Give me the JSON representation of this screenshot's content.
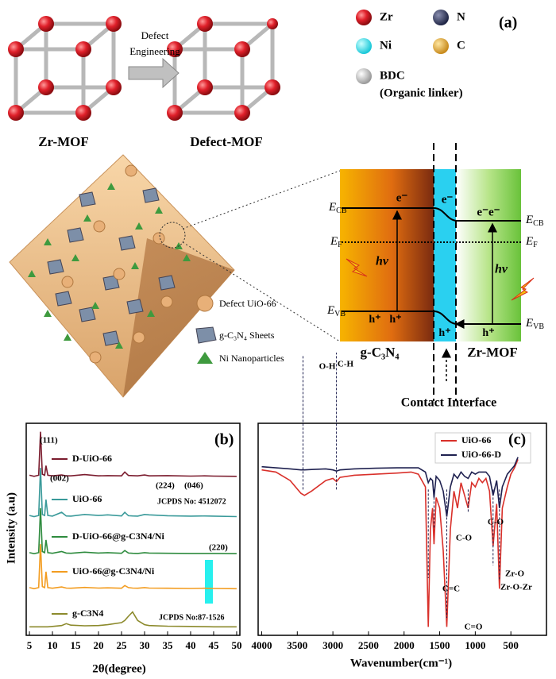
{
  "panel_a": {
    "panel_label": "(a)",
    "atom_legend": [
      "Zr",
      "N",
      "Ni",
      "C",
      "BDC"
    ],
    "linker_note": "(Organic linker)",
    "arrow_label": [
      "Defect",
      "Engineering"
    ],
    "mof_labels": [
      "Zr-MOF",
      "Defect-MOF"
    ],
    "particle_legend": [
      "Defect UiO-66",
      "g-C₃N₄ Sheets",
      "Ni Nanoparticles"
    ],
    "energy_labels": [
      [
        "E",
        "CB"
      ],
      [
        "E",
        "F"
      ],
      [
        "E",
        "VB"
      ],
      [
        "E",
        "CB"
      ],
      [
        "E",
        "F"
      ],
      [
        "E",
        "VB"
      ]
    ],
    "electrons": [
      "e⁻",
      "e⁻",
      "e⁻e⁻"
    ],
    "holes": [
      "h⁺",
      "h⁺",
      "h⁺",
      "h⁺"
    ],
    "photons": [
      "hν",
      "hν"
    ],
    "phases": [
      "g-C₃N₄",
      "Zr-MOF"
    ],
    "interface_label": "Contact Interface"
  },
  "chart_data": [
    {
      "type": "line",
      "panel_label": "(b)",
      "x_label": "2θ(degree)",
      "y_label": "Intensity (a.u)",
      "xlim": [
        4.3,
        50.7
      ],
      "xticks": [
        5,
        10,
        15,
        20,
        25,
        30,
        35,
        40,
        45,
        50
      ],
      "ylim": [
        0,
        100
      ],
      "x": [
        5,
        6,
        7,
        7.4,
        7.8,
        8.3,
        8.6,
        9,
        10,
        12,
        13,
        14,
        17,
        20,
        22,
        25,
        25.7,
        26.5,
        27.4,
        28.5,
        30,
        31,
        35,
        40,
        43,
        45,
        50
      ],
      "series": [
        {
          "name": "D-UiO-66",
          "color": "#7b1c2e",
          "values": [
            75.5,
            75,
            75.5,
            96,
            76,
            75.5,
            80,
            75.5,
            75.2,
            75.6,
            75.2,
            75.2,
            75.8,
            75.2,
            75.3,
            75.2,
            77,
            75.4,
            75.3,
            75.2,
            75.6,
            75.2,
            75.3,
            75.1,
            75.2,
            75.1,
            75
          ]
        },
        {
          "name": "UiO-66",
          "color": "#3a9a9a",
          "values": [
            56.5,
            56,
            56.5,
            79,
            57,
            56.5,
            64,
            56.5,
            56.2,
            58,
            56.3,
            56.2,
            57,
            56.5,
            56.8,
            56.3,
            58,
            56.4,
            56.3,
            56.2,
            57,
            56.8,
            56.4,
            56.2,
            56.3,
            56.2,
            56
          ]
        },
        {
          "name": "D-UiO-66@g-C3N4/Ni",
          "color": "#2e8b3e",
          "values": [
            39,
            38.5,
            39,
            60,
            39.5,
            39,
            45,
            39,
            38.7,
            39.5,
            38.8,
            38.7,
            39.2,
            38.8,
            39,
            38.7,
            40,
            38.8,
            38.7,
            38.6,
            39,
            38.8,
            38.7,
            38.6,
            38.6,
            38.6,
            38.5
          ]
        },
        {
          "name": "UiO-66@g-C3N4/Ni",
          "color": "#f39c1f",
          "values": [
            22.5,
            22,
            22.5,
            43,
            23,
            22.5,
            30,
            22.5,
            22.2,
            22.8,
            22.3,
            22.2,
            22.6,
            22.3,
            22.4,
            22.2,
            23.5,
            22.5,
            22.3,
            22.2,
            22.5,
            22.3,
            22.2,
            22.1,
            22.2,
            22.1,
            22
          ]
        },
        {
          "name": "g-C3N4",
          "color": "#8c8a2c",
          "values": [
            4,
            4,
            4,
            4,
            4,
            4,
            4,
            4,
            4.2,
            4.6,
            5.5,
            4.8,
            4.5,
            4.6,
            5,
            6,
            7,
            9,
            11,
            7,
            5,
            4.6,
            4.3,
            4.2,
            4.1,
            4,
            4
          ]
        }
      ],
      "annotations": [
        "(111)",
        "(002)",
        "(224)",
        "(046)",
        "(220)",
        "JCPDS No: 4512072",
        "JCPDS No:87-1526"
      ]
    },
    {
      "type": "line",
      "panel_label": "(c)",
      "x_label": "Wavenumber(cm⁻¹)",
      "xlim": [
        4050,
        0
      ],
      "xticks": [
        4000,
        3500,
        3000,
        2500,
        2000,
        1500,
        1000,
        500
      ],
      "ylim": [
        0,
        100
      ],
      "x": [
        4000,
        3800,
        3600,
        3450,
        3400,
        3300,
        3100,
        3000,
        2950,
        2900,
        2700,
        2400,
        2100,
        1900,
        1800,
        1700,
        1660,
        1630,
        1600,
        1580,
        1550,
        1500,
        1450,
        1400,
        1350,
        1300,
        1250,
        1200,
        1150,
        1100,
        1050,
        1000,
        950,
        900,
        850,
        800,
        750,
        700,
        660,
        620,
        550,
        500,
        450,
        400
      ],
      "series": [
        {
          "name": "UiO-66",
          "color": "#d9302a",
          "values": [
            78,
            77,
            73,
            67,
            66,
            68,
            73,
            74,
            72.5,
            74.5,
            75.5,
            76,
            76.5,
            77,
            76,
            70,
            4,
            50,
            60,
            43,
            65,
            60,
            40,
            4,
            50,
            68,
            60,
            72,
            66,
            60,
            72,
            70,
            74,
            72,
            74,
            68,
            42,
            62,
            22,
            60,
            70,
            76,
            79,
            83
          ]
        },
        {
          "name": "UiO-66-D",
          "color": "#1f2150",
          "values": [
            79.5,
            79,
            78.5,
            78,
            78,
            78.2,
            78.5,
            78,
            77.5,
            78,
            78.5,
            78.8,
            79,
            79,
            79,
            77,
            72,
            74,
            73,
            65,
            75,
            73,
            68,
            56,
            70,
            76,
            74,
            77,
            75,
            74,
            77,
            76,
            77,
            77,
            77,
            75,
            66,
            73,
            60,
            70,
            76,
            78,
            80,
            84
          ]
        }
      ],
      "annotations": [
        "O-H",
        "C-H",
        "C=C",
        "C-O",
        "C=O",
        "C-O",
        "Zr-O",
        "Zr-O-Zr"
      ]
    }
  ]
}
